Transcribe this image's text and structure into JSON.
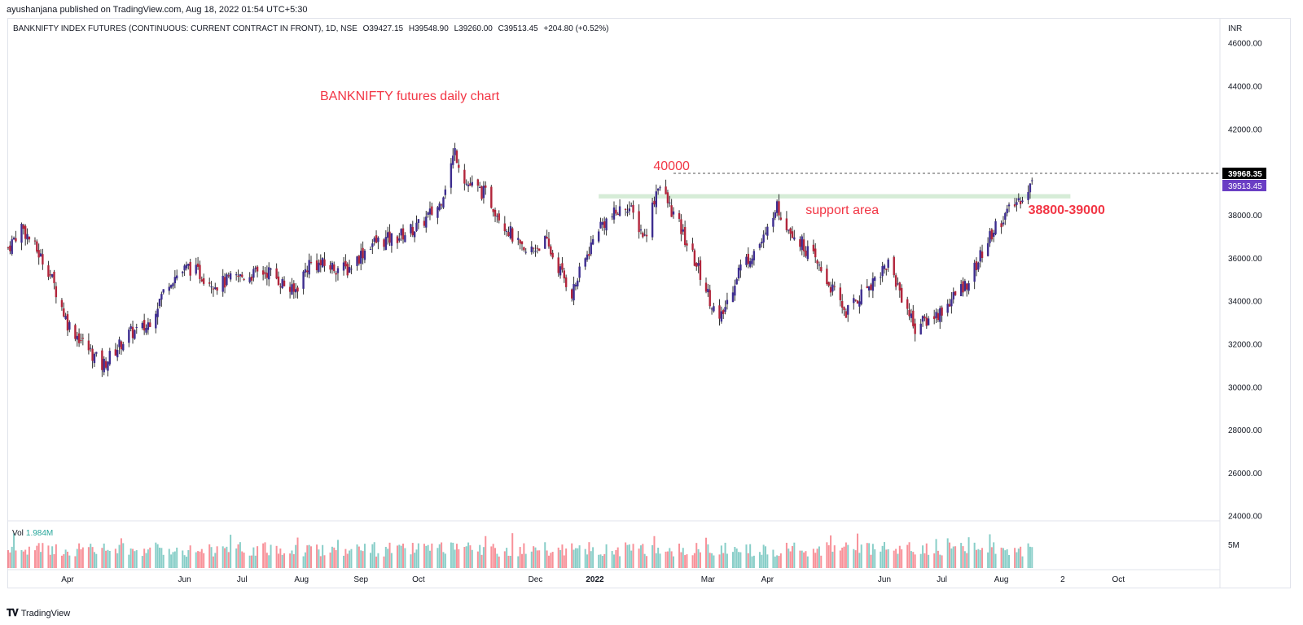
{
  "header": {
    "published_by": "ayushanjana published on TradingView.com, Aug 18, 2022 01:54 UTC+5:30"
  },
  "legend": {
    "symbol": "BANKNIFTY INDEX FUTURES (CONTINUOUS: CURRENT CONTRACT IN FRONT), 1D, NSE",
    "open": "O39427.15",
    "high": "H39548.90",
    "low": "L39260.00",
    "close": "C39513.45",
    "change": "+204.80 (+0.52%)"
  },
  "volume": {
    "label": "Vol",
    "value": "1.984M",
    "axis_label": "5M"
  },
  "footer": {
    "brand": "TradingView"
  },
  "colors": {
    "up": "#26a69a",
    "down": "#f23645",
    "candle_up_body": "#3d2d8f",
    "candle_down_body": "#b2253b",
    "annotation": "#f23645",
    "support_zone": "#c8e6c9",
    "price_label_bg": "#6a3ec4",
    "high_label_bg": "#000000"
  },
  "chart_data": {
    "type": "candlestick",
    "title": "BANKNIFTY futures daily chart",
    "currency": "INR",
    "ylim": [
      23800,
      47200
    ],
    "y_ticks": [
      24000,
      26000,
      28000,
      30000,
      32000,
      34000,
      36000,
      38000,
      40000,
      42000,
      44000,
      46000
    ],
    "y_tick_labels": [
      "24000.00",
      "26000.00",
      "28000.00",
      "30000.00",
      "32000.00",
      "34000.00",
      "36000.00",
      "38000.00",
      "40000.00",
      "42000.00",
      "44000.00",
      "46000.00"
    ],
    "x_ticks": [
      {
        "label": "Apr",
        "date": "2021-04-01"
      },
      {
        "label": "Jun",
        "date": "2021-06-01"
      },
      {
        "label": "Jul",
        "date": "2021-07-01"
      },
      {
        "label": "Aug",
        "date": "2021-08-01"
      },
      {
        "label": "Sep",
        "date": "2021-09-01"
      },
      {
        "label": "Oct",
        "date": "2021-10-01"
      },
      {
        "label": "Dec",
        "date": "2021-12-01"
      },
      {
        "label": "2022",
        "date": "2022-01-01"
      },
      {
        "label": "Mar",
        "date": "2022-03-01"
      },
      {
        "label": "Apr",
        "date": "2022-04-01"
      },
      {
        "label": "Jun",
        "date": "2022-06-01"
      },
      {
        "label": "Jul",
        "date": "2022-07-01"
      },
      {
        "label": "Aug",
        "date": "2022-08-01"
      },
      {
        "label": "2",
        "date": "2022-09-02"
      },
      {
        "label": "Oct",
        "date": "2022-10-01"
      }
    ],
    "price_path": [
      {
        "date": "2021-03-01",
        "close": 36500
      },
      {
        "date": "2021-03-08",
        "close": 37500
      },
      {
        "date": "2021-03-22",
        "close": 35500
      },
      {
        "date": "2021-04-01",
        "close": 33000
      },
      {
        "date": "2021-04-19",
        "close": 31000
      },
      {
        "date": "2021-05-03",
        "close": 32500
      },
      {
        "date": "2021-05-12",
        "close": 32800
      },
      {
        "date": "2021-05-24",
        "close": 35000
      },
      {
        "date": "2021-06-03",
        "close": 35600
      },
      {
        "date": "2021-06-18",
        "close": 34800
      },
      {
        "date": "2021-07-02",
        "close": 35200
      },
      {
        "date": "2021-07-15",
        "close": 35400
      },
      {
        "date": "2021-07-28",
        "close": 34400
      },
      {
        "date": "2021-08-05",
        "close": 35800
      },
      {
        "date": "2021-08-25",
        "close": 35500
      },
      {
        "date": "2021-09-06",
        "close": 36700
      },
      {
        "date": "2021-09-20",
        "close": 37000
      },
      {
        "date": "2021-10-01",
        "close": 37500
      },
      {
        "date": "2021-10-12",
        "close": 38500
      },
      {
        "date": "2021-10-20",
        "close": 41000
      },
      {
        "date": "2021-10-26",
        "close": 39500
      },
      {
        "date": "2021-11-05",
        "close": 39000
      },
      {
        "date": "2021-11-25",
        "close": 36200
      },
      {
        "date": "2021-12-06",
        "close": 36800
      },
      {
        "date": "2021-12-20",
        "close": 34400
      },
      {
        "date": "2022-01-03",
        "close": 37500
      },
      {
        "date": "2022-01-18",
        "close": 38500
      },
      {
        "date": "2022-01-27",
        "close": 37000
      },
      {
        "date": "2022-02-03",
        "close": 39500
      },
      {
        "date": "2022-02-14",
        "close": 37500
      },
      {
        "date": "2022-02-24",
        "close": 35500
      },
      {
        "date": "2022-03-07",
        "close": 33000
      },
      {
        "date": "2022-03-17",
        "close": 35500
      },
      {
        "date": "2022-03-31",
        "close": 37000
      },
      {
        "date": "2022-04-05",
        "close": 38500
      },
      {
        "date": "2022-04-12",
        "close": 37500
      },
      {
        "date": "2022-04-25",
        "close": 36000
      },
      {
        "date": "2022-05-12",
        "close": 33500
      },
      {
        "date": "2022-05-26",
        "close": 35000
      },
      {
        "date": "2022-06-03",
        "close": 35800
      },
      {
        "date": "2022-06-17",
        "close": 32800
      },
      {
        "date": "2022-06-30",
        "close": 33500
      },
      {
        "date": "2022-07-15",
        "close": 35000
      },
      {
        "date": "2022-07-29",
        "close": 37500
      },
      {
        "date": "2022-08-08",
        "close": 38500
      },
      {
        "date": "2022-08-17",
        "close": 39513
      }
    ],
    "current_price": {
      "value": 39513.45,
      "label": "39513.45"
    },
    "marked_high": {
      "value": 39968.35,
      "label": "39968.35"
    },
    "annotations": [
      {
        "id": "high",
        "text": "40000",
        "date": "2022-02-10",
        "price": 40000
      },
      {
        "id": "support-text",
        "text": "support area",
        "date": "2022-05-10",
        "price": 38600
      },
      {
        "id": "support-range",
        "text": "38800-39000",
        "date": "2022-08-15",
        "price": 38600
      }
    ],
    "support_zone": {
      "from_date": "2022-01-03",
      "to_date": "2022-09-06",
      "low": 38800,
      "high": 39000
    },
    "resistance_line": {
      "from_date": "2022-02-11",
      "price": 39968.35
    }
  }
}
